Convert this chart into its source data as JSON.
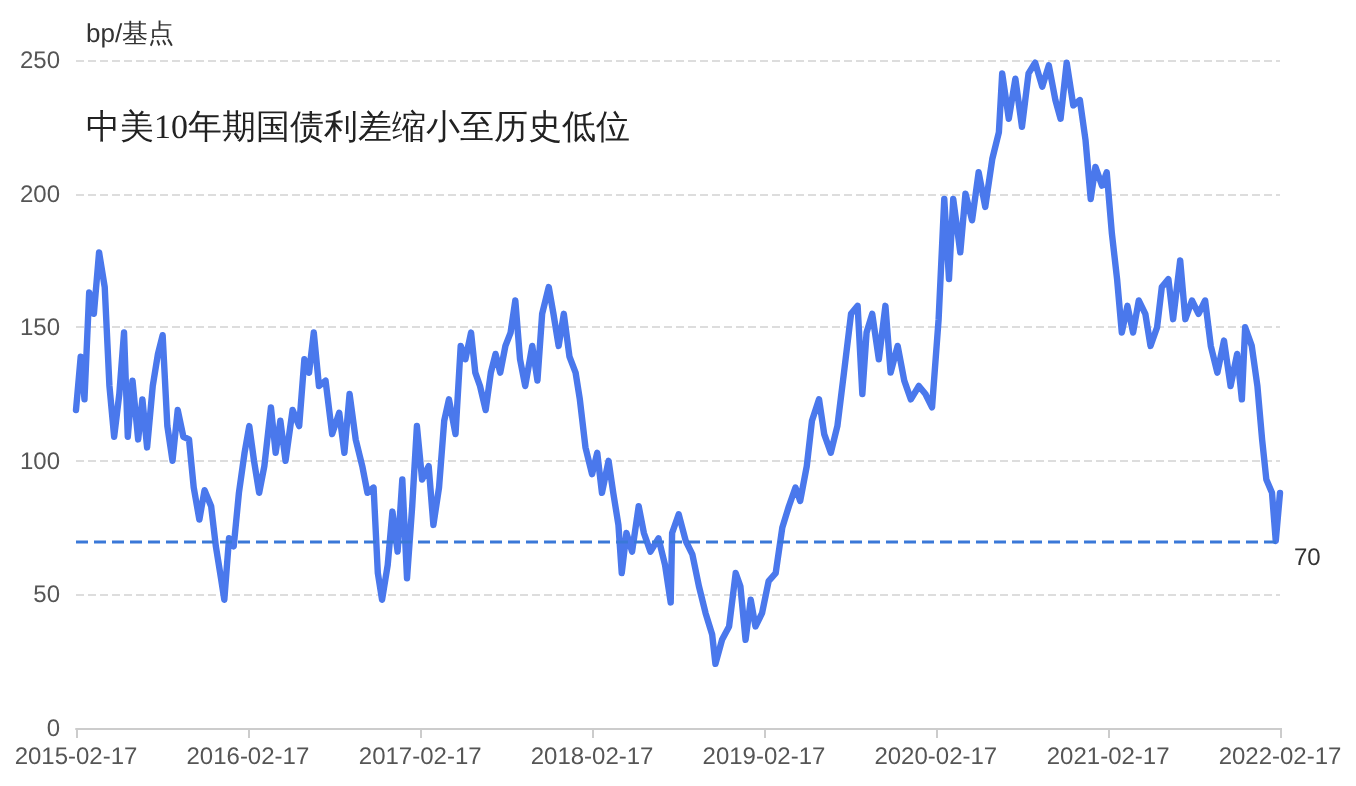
{
  "chart_data": {
    "type": "line",
    "title": "中美10年期国债利差缩小至历史低位",
    "ylabel": "bp/基点",
    "xlim": [
      "2015-02-17",
      "2022-02-17"
    ],
    "xticks": [
      "2015-02-17",
      "2016-02-17",
      "2017-02-17",
      "2018-02-17",
      "2019-02-17",
      "2020-02-17",
      "2021-02-17",
      "2022-02-17"
    ],
    "ylim": [
      0,
      250
    ],
    "yticks": [
      0,
      50,
      100,
      150,
      200,
      250
    ],
    "grid": "y",
    "marker": "none",
    "line_style": "solid",
    "ref_lines": [
      {
        "axis": "y",
        "value": 70,
        "label": "70",
        "color": "#3a78d8",
        "line_style": "dashed"
      }
    ],
    "series": [
      {
        "color": "#4a78ec",
        "x": [
          "2015-02-17",
          "2015-02-27",
          "2015-03-07",
          "2015-03-17",
          "2015-03-27",
          "2015-04-07",
          "2015-04-19",
          "2015-04-29",
          "2015-05-09",
          "2015-05-20",
          "2015-05-30",
          "2015-06-07",
          "2015-06-17",
          "2015-06-29",
          "2015-07-08",
          "2015-07-18",
          "2015-07-30",
          "2015-08-10",
          "2015-08-20",
          "2015-08-30",
          "2015-09-10",
          "2015-09-21",
          "2015-10-03",
          "2015-10-15",
          "2015-10-25",
          "2015-11-06",
          "2015-11-17",
          "2015-12-01",
          "2015-12-11",
          "2015-12-22",
          "2015-12-29",
          "2016-01-08",
          "2016-01-18",
          "2016-01-29",
          "2016-02-10",
          "2016-02-20",
          "2016-03-01",
          "2016-03-12",
          "2016-03-23",
          "2016-04-06",
          "2016-04-16",
          "2016-04-26",
          "2016-05-07",
          "2016-05-22",
          "2016-06-05",
          "2016-06-16",
          "2016-06-26",
          "2016-07-06",
          "2016-07-17",
          "2016-07-31",
          "2016-08-14",
          "2016-08-29",
          "2016-09-09",
          "2016-09-20",
          "2016-10-03",
          "2016-10-17",
          "2016-10-28",
          "2016-11-10",
          "2016-11-19",
          "2016-11-28",
          "2016-12-10",
          "2016-12-20",
          "2016-12-31",
          "2017-01-10",
          "2017-01-20",
          "2017-01-31",
          "2017-02-10",
          "2017-02-21",
          "2017-03-07",
          "2017-03-17",
          "2017-03-29",
          "2017-04-09",
          "2017-04-19",
          "2017-05-03",
          "2017-05-14",
          "2017-05-24",
          "2017-06-05",
          "2017-06-14",
          "2017-06-24",
          "2017-07-06",
          "2017-07-17",
          "2017-07-27",
          "2017-08-06",
          "2017-08-17",
          "2017-08-28",
          "2017-09-07",
          "2017-09-17",
          "2017-09-28",
          "2017-10-13",
          "2017-10-24",
          "2017-11-03",
          "2017-11-17",
          "2017-11-27",
          "2017-12-08",
          "2017-12-19",
          "2017-12-31",
          "2018-01-13",
          "2018-01-22",
          "2018-02-03",
          "2018-02-17",
          "2018-02-28",
          "2018-03-10",
          "2018-03-24",
          "2018-04-03",
          "2018-04-14",
          "2018-04-21",
          "2018-05-01",
          "2018-05-13",
          "2018-05-27",
          "2018-06-07",
          "2018-06-21",
          "2018-07-08",
          "2018-07-22",
          "2018-08-03",
          "2018-08-06",
          "2018-08-20",
          "2018-09-04",
          "2018-09-18",
          "2018-10-02",
          "2018-10-16",
          "2018-10-30",
          "2018-11-06",
          "2018-11-20",
          "2018-12-05",
          "2018-12-19",
          "2018-12-29",
          "2019-01-09",
          "2019-01-20",
          "2019-01-30",
          "2019-02-13",
          "2019-02-27",
          "2019-03-14",
          "2019-03-28",
          "2019-04-11",
          "2019-04-25",
          "2019-05-05",
          "2019-05-19",
          "2019-05-30",
          "2019-06-14",
          "2019-06-25",
          "2019-07-09",
          "2019-07-23",
          "2019-08-06",
          "2019-08-21",
          "2019-09-04",
          "2019-09-14",
          "2019-09-23",
          "2019-10-05",
          "2019-10-19",
          "2019-11-02",
          "2019-11-13",
          "2019-11-28",
          "2019-12-12",
          "2019-12-26",
          "2020-01-12",
          "2020-01-26",
          "2020-02-09",
          "2020-02-23",
          "2020-03-06",
          "2020-03-16",
          "2020-03-25",
          "2020-04-09",
          "2020-04-20",
          "2020-05-04",
          "2020-05-18",
          "2020-06-01",
          "2020-06-16",
          "2020-06-30",
          "2020-07-07",
          "2020-07-21",
          "2020-08-04",
          "2020-08-18",
          "2020-09-01",
          "2020-09-15",
          "2020-09-30",
          "2020-10-14",
          "2020-10-28",
          "2020-11-08",
          "2020-11-21",
          "2020-12-05",
          "2020-12-19",
          "2020-12-31",
          "2021-01-11",
          "2021-01-21",
          "2021-02-04",
          "2021-02-14",
          "2021-02-25",
          "2021-03-08",
          "2021-03-18",
          "2021-03-30",
          "2021-04-11",
          "2021-04-23",
          "2021-05-07",
          "2021-05-18",
          "2021-06-01",
          "2021-06-11",
          "2021-06-25",
          "2021-07-05",
          "2021-07-20",
          "2021-07-31",
          "2021-08-14",
          "2021-08-28",
          "2021-09-11",
          "2021-09-23",
          "2021-10-07",
          "2021-10-21",
          "2021-11-04",
          "2021-11-18",
          "2021-11-28",
          "2021-12-05",
          "2021-12-19",
          "2021-12-31",
          "2022-01-10",
          "2022-01-19",
          "2022-01-31",
          "2022-02-08",
          "2022-02-17"
        ],
        "values": [
          119,
          139,
          123,
          163,
          155,
          178,
          165,
          128,
          109,
          125,
          148,
          109,
          130,
          108,
          123,
          105,
          128,
          140,
          147,
          113,
          100,
          119,
          109,
          108,
          90,
          78,
          89,
          83,
          68,
          56,
          48,
          71,
          68,
          88,
          103,
          113,
          100,
          88,
          98,
          120,
          103,
          115,
          100,
          119,
          113,
          138,
          133,
          148,
          128,
          130,
          110,
          118,
          103,
          125,
          108,
          98,
          88,
          90,
          58,
          48,
          61,
          81,
          66,
          93,
          56,
          83,
          113,
          93,
          98,
          76,
          90,
          115,
          123,
          110,
          143,
          138,
          148,
          133,
          128,
          119,
          133,
          140,
          133,
          143,
          148,
          160,
          138,
          128,
          143,
          130,
          155,
          165,
          155,
          143,
          155,
          139,
          133,
          123,
          105,
          95,
          103,
          88,
          100,
          88,
          76,
          58,
          73,
          66,
          83,
          73,
          66,
          71,
          61,
          47,
          73,
          80,
          70,
          65,
          53,
          43,
          35,
          24,
          33,
          38,
          58,
          53,
          33,
          48,
          38,
          43,
          55,
          58,
          75,
          83,
          90,
          85,
          98,
          115,
          123,
          110,
          103,
          113,
          133,
          155,
          158,
          125,
          148,
          155,
          138,
          158,
          133,
          143,
          130,
          123,
          128,
          125,
          120,
          153,
          198,
          168,
          198,
          178,
          200,
          190,
          208,
          195,
          213,
          223,
          245,
          228,
          243,
          225,
          245,
          249,
          240,
          248,
          235,
          228,
          249,
          233,
          235,
          220,
          198,
          210,
          203,
          208,
          185,
          168,
          148,
          158,
          148,
          160,
          155,
          143,
          150,
          165,
          168,
          153,
          175,
          153,
          160,
          155,
          160,
          143,
          133,
          145,
          128,
          140,
          123,
          150,
          143,
          128,
          108,
          93,
          88,
          70,
          88
        ]
      }
    ]
  }
}
